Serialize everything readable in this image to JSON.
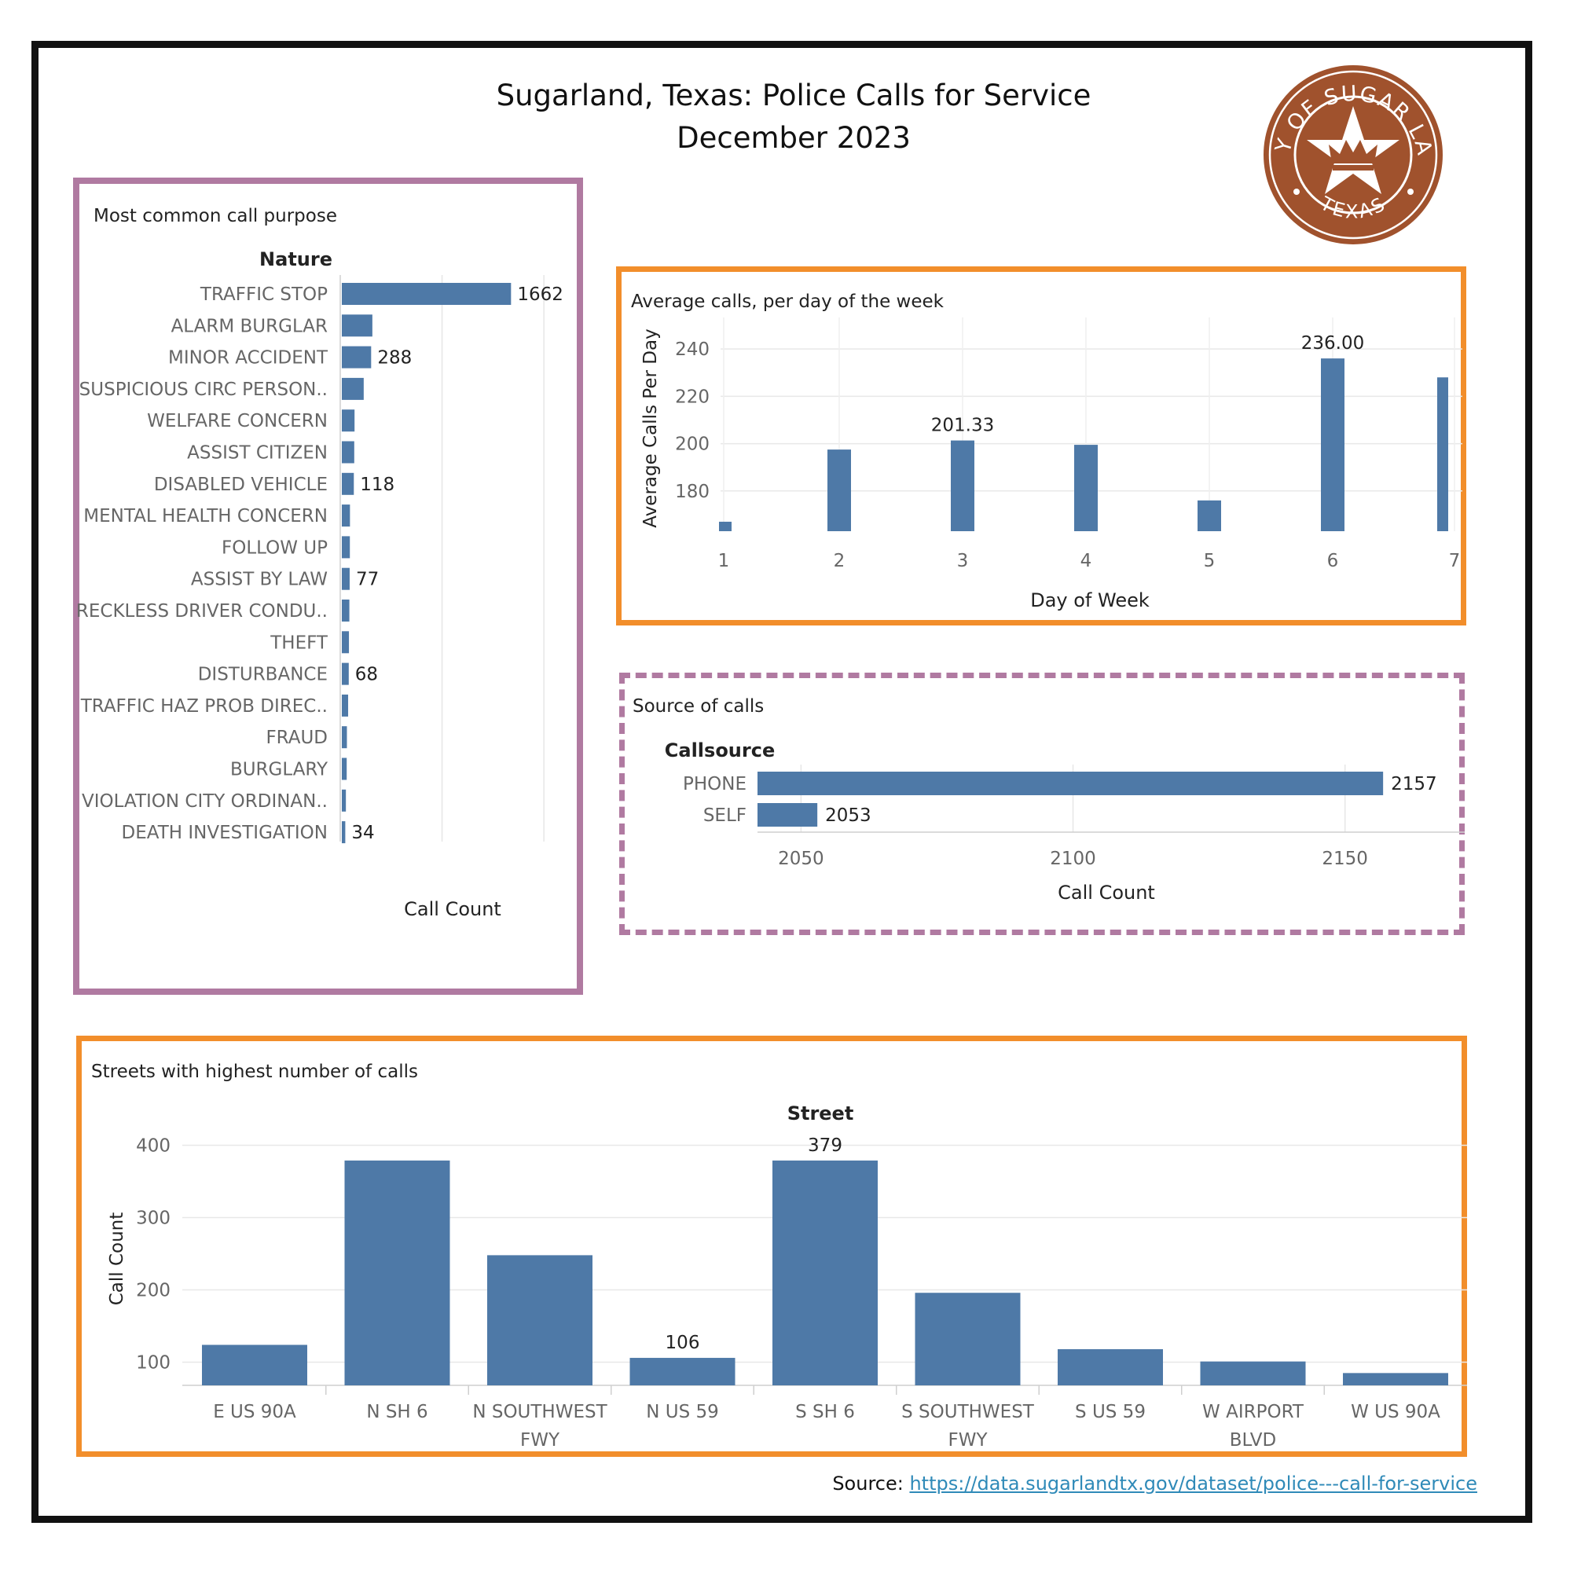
{
  "title": {
    "line1": "Sugarland, Texas: Police Calls for Service",
    "line2": "December 2023"
  },
  "seal": {
    "top_text": "CITY OF SUGAR LAND",
    "bottom_text": "TEXAS",
    "color": "#a0522d"
  },
  "colors": {
    "bar": "#4e79a7",
    "panel_purple": "#b07aa1",
    "panel_orange": "#f28e2b"
  },
  "source": {
    "label": "Source:",
    "url": "https://data.sugarlandtx.gov/dataset/police---call-for-service"
  },
  "chart_data": [
    {
      "id": "nature",
      "type": "bar",
      "orientation": "horizontal",
      "title": "Most common call purpose",
      "category_header": "Nature",
      "xlabel": "Call Count",
      "xlim": [
        0,
        2300
      ],
      "gridlines_at": [
        1000,
        2000
      ],
      "categories": [
        "TRAFFIC STOP",
        "ALARM BURGLAR",
        "MINOR ACCIDENT",
        "SUSPICIOUS CIRC PERSON..",
        "WELFARE CONCERN",
        "ASSIST CITIZEN",
        "DISABLED VEHICLE",
        "MENTAL HEALTH CONCERN",
        "FOLLOW UP",
        "ASSIST BY LAW",
        "RECKLESS DRIVER CONDU..",
        "THEFT",
        "DISTURBANCE",
        "TRAFFIC HAZ PROB DIREC..",
        "FRAUD",
        "BURGLARY",
        "VIOLATION CITY ORDINAN..",
        "DEATH INVESTIGATION"
      ],
      "values": [
        1662,
        300,
        288,
        215,
        125,
        122,
        118,
        80,
        79,
        77,
        74,
        70,
        68,
        62,
        50,
        48,
        40,
        34
      ],
      "data_labels": [
        "1662",
        "",
        "288",
        "",
        "",
        "",
        "118",
        "",
        "",
        "77",
        "",
        "",
        "68",
        "",
        "",
        "",
        "",
        "34"
      ]
    },
    {
      "id": "dow",
      "type": "bar",
      "title": "Average calls,  per day of the week",
      "xlabel": "Day of Week",
      "ylabel": "Average Calls Per Day",
      "ylim": [
        163,
        250
      ],
      "yticks": [
        180,
        200,
        220,
        240
      ],
      "categories": [
        "1",
        "2",
        "3",
        "4",
        "5",
        "6",
        "7"
      ],
      "values": [
        167,
        197.5,
        201.33,
        199.5,
        176,
        236.0,
        228
      ],
      "data_labels": [
        "",
        "",
        "201.33",
        "",
        "",
        "236.00",
        ""
      ]
    },
    {
      "id": "source",
      "type": "bar",
      "orientation": "horizontal",
      "title": "Source of calls",
      "category_header": "Callsource",
      "xlabel": "Call Count",
      "xlim": [
        2042,
        2172
      ],
      "xticks": [
        2050,
        2100,
        2150
      ],
      "categories": [
        "PHONE",
        "SELF"
      ],
      "values": [
        2157,
        2053
      ],
      "data_labels": [
        "2157",
        "2053"
      ]
    },
    {
      "id": "street",
      "type": "bar",
      "title": "Streets with highest number of  calls",
      "category_header": "Street",
      "ylabel": "Call Count",
      "ylim": [
        68,
        418
      ],
      "yticks": [
        100,
        200,
        300,
        400
      ],
      "categories": [
        [
          "E US 90A"
        ],
        [
          "N SH 6"
        ],
        [
          "N SOUTHWEST",
          "FWY"
        ],
        [
          "N US 59"
        ],
        [
          "S SH 6"
        ],
        [
          "S SOUTHWEST",
          "FWY"
        ],
        [
          "S US 59"
        ],
        [
          "W AIRPORT",
          "BLVD"
        ],
        [
          "W US 90A"
        ]
      ],
      "values": [
        124,
        379,
        248,
        106,
        379,
        196,
        118,
        101,
        85
      ],
      "data_labels": [
        "",
        "",
        "",
        "106",
        "379",
        "",
        "",
        "",
        ""
      ]
    }
  ]
}
